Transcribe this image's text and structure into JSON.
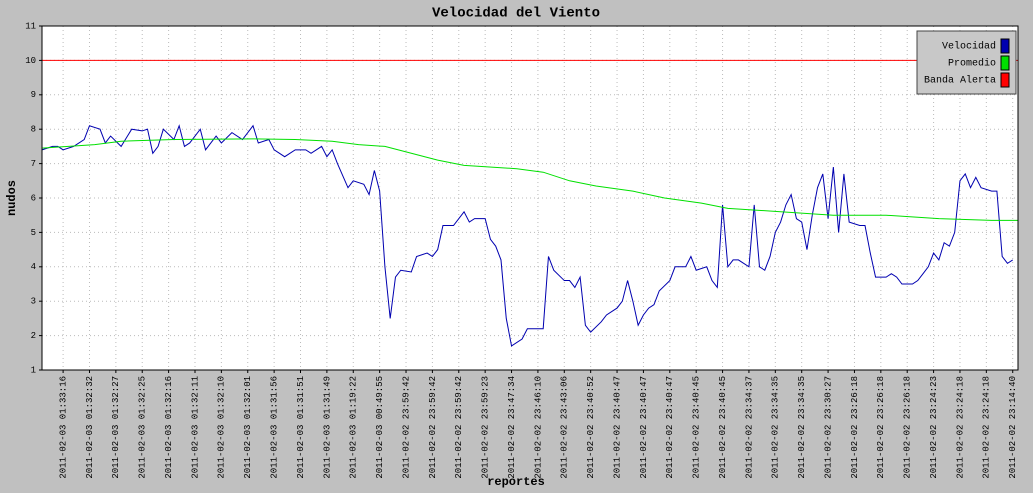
{
  "chart_data": {
    "type": "line",
    "title": "Velocidad del Viento",
    "xlabel": "reportes",
    "ylabel": "nudos",
    "xlim": [
      0,
      185
    ],
    "ylim": [
      1,
      11
    ],
    "yticks": [
      1,
      2,
      3,
      4,
      5,
      6,
      7,
      8,
      9,
      10,
      11
    ],
    "xticks": [
      {
        "value": 4,
        "label": "2011-02-03 01:33:16"
      },
      {
        "value": 9,
        "label": "2011-02-03 01:32:32"
      },
      {
        "value": 14,
        "label": "2011-02-03 01:32:27"
      },
      {
        "value": 19,
        "label": "2011-02-03 01:32:25"
      },
      {
        "value": 24,
        "label": "2011-02-03 01:32:16"
      },
      {
        "value": 29,
        "label": "2011-02-03 01:32:11"
      },
      {
        "value": 34,
        "label": "2011-02-03 01:32:10"
      },
      {
        "value": 39,
        "label": "2011-02-03 01:32:01"
      },
      {
        "value": 44,
        "label": "2011-02-03 01:31:56"
      },
      {
        "value": 49,
        "label": "2011-02-03 01:31:51"
      },
      {
        "value": 54,
        "label": "2011-02-03 01:31:49"
      },
      {
        "value": 59,
        "label": "2011-02-03 01:19:22"
      },
      {
        "value": 64,
        "label": "2011-02-03 00:49:55"
      },
      {
        "value": 69,
        "label": "2011-02-02 23:59:42"
      },
      {
        "value": 74,
        "label": "2011-02-02 23:59:42"
      },
      {
        "value": 79,
        "label": "2011-02-02 23:59:42"
      },
      {
        "value": 84,
        "label": "2011-02-02 23:59:23"
      },
      {
        "value": 89,
        "label": "2011-02-02 23:47:34"
      },
      {
        "value": 94,
        "label": "2011-02-02 23:46:10"
      },
      {
        "value": 99,
        "label": "2011-02-02 23:43:06"
      },
      {
        "value": 104,
        "label": "2011-02-02 23:40:52"
      },
      {
        "value": 109,
        "label": "2011-02-02 23:40:47"
      },
      {
        "value": 114,
        "label": "2011-02-02 23:40:47"
      },
      {
        "value": 119,
        "label": "2011-02-02 23:40:47"
      },
      {
        "value": 124,
        "label": "2011-02-02 23:40:45"
      },
      {
        "value": 129,
        "label": "2011-02-02 23:40:45"
      },
      {
        "value": 134,
        "label": "2011-02-02 23:34:37"
      },
      {
        "value": 139,
        "label": "2011-02-02 23:34:35"
      },
      {
        "value": 144,
        "label": "2011-02-02 23:34:35"
      },
      {
        "value": 149,
        "label": "2011-02-02 23:30:27"
      },
      {
        "value": 154,
        "label": "2011-02-02 23:26:18"
      },
      {
        "value": 159,
        "label": "2011-02-02 23:26:18"
      },
      {
        "value": 164,
        "label": "2011-02-02 23:26:18"
      },
      {
        "value": 169,
        "label": "2011-02-02 23:24:23"
      },
      {
        "value": 174,
        "label": "2011-02-02 23:24:18"
      },
      {
        "value": 179,
        "label": "2011-02-02 23:24:18"
      },
      {
        "value": 184,
        "label": "2011-02-02 23:14:40"
      }
    ],
    "grid": true,
    "legend": "top-right",
    "series": [
      {
        "name": "Velocidad",
        "color": "#0000b0",
        "x": [
          0,
          2,
          3,
          4,
          6,
          8,
          9,
          11,
          12,
          13,
          15,
          17,
          19,
          20,
          21,
          22,
          23,
          25,
          26,
          27,
          28,
          30,
          31,
          33,
          34,
          36,
          38,
          40,
          41,
          43,
          44,
          46,
          48,
          50,
          51,
          53,
          54,
          55,
          56,
          58,
          59,
          61,
          62,
          63,
          64,
          65,
          66,
          67,
          68,
          70,
          71,
          73,
          74,
          75,
          76,
          78,
          80,
          81,
          82,
          84,
          85,
          86,
          87,
          88,
          89,
          91,
          92,
          95,
          96,
          97,
          99,
          100,
          101,
          102,
          103,
          104,
          106,
          107,
          109,
          110,
          111,
          112,
          113,
          114,
          115,
          116,
          117,
          119,
          120,
          122,
          123,
          124,
          126,
          127,
          128,
          129,
          130,
          131,
          132,
          134,
          135,
          136,
          137,
          138,
          139,
          140,
          141,
          142,
          143,
          144,
          145,
          146,
          147,
          148,
          149,
          150,
          151,
          152,
          153,
          155,
          156,
          157,
          158,
          160,
          161,
          162,
          163,
          165,
          166,
          167,
          168,
          169,
          170,
          171,
          172,
          173,
          174,
          175,
          176,
          177,
          178,
          180,
          181,
          182,
          183,
          184
        ],
        "values": [
          7.4,
          7.5,
          7.5,
          7.4,
          7.5,
          7.7,
          8.1,
          8.0,
          7.6,
          7.8,
          7.5,
          8.0,
          7.95,
          8.0,
          7.3,
          7.5,
          8.0,
          7.7,
          8.1,
          7.5,
          7.6,
          8.0,
          7.4,
          7.8,
          7.6,
          7.9,
          7.7,
          8.1,
          7.6,
          7.7,
          7.4,
          7.2,
          7.4,
          7.4,
          7.3,
          7.5,
          7.2,
          7.4,
          7.0,
          6.3,
          6.5,
          6.4,
          6.1,
          6.8,
          6.2,
          4.0,
          2.5,
          3.7,
          3.9,
          3.85,
          4.3,
          4.4,
          4.3,
          4.5,
          5.2,
          5.2,
          5.6,
          5.3,
          5.4,
          5.4,
          4.8,
          4.6,
          4.2,
          2.5,
          1.7,
          1.9,
          2.2,
          2.2,
          4.3,
          3.9,
          3.6,
          3.6,
          3.4,
          3.7,
          2.3,
          2.1,
          2.4,
          2.6,
          2.8,
          3.0,
          3.6,
          3.0,
          2.3,
          2.6,
          2.8,
          2.9,
          3.3,
          3.6,
          4.0,
          4.0,
          4.3,
          3.9,
          4.0,
          3.6,
          3.4,
          5.8,
          4.0,
          4.2,
          4.2,
          4.0,
          5.8,
          4.0,
          3.9,
          4.3,
          5.0,
          5.3,
          5.8,
          6.1,
          5.4,
          5.3,
          4.5,
          5.5,
          6.3,
          6.7,
          5.4,
          6.9,
          5.0,
          6.7,
          5.3,
          5.2,
          5.2,
          4.4,
          3.7,
          3.7,
          3.8,
          3.7,
          3.5,
          3.5,
          3.6,
          3.8,
          4.0,
          4.4,
          4.2,
          4.7,
          4.6,
          5.0,
          6.5,
          6.7,
          6.3,
          6.6,
          6.3,
          6.2,
          6.2,
          4.3,
          4.1,
          4.2
        ]
      },
      {
        "name": "Promedio",
        "color": "#00e000",
        "x": [
          0,
          10,
          15,
          25,
          40,
          48,
          55,
          60,
          65,
          70,
          75,
          80,
          90,
          95,
          100,
          105,
          112,
          118,
          125,
          130,
          140,
          150,
          160,
          170,
          180,
          185
        ],
        "values": [
          7.45,
          7.55,
          7.65,
          7.7,
          7.72,
          7.7,
          7.65,
          7.55,
          7.5,
          7.3,
          7.1,
          6.95,
          6.85,
          6.75,
          6.5,
          6.35,
          6.2,
          6.0,
          5.85,
          5.7,
          5.6,
          5.5,
          5.5,
          5.4,
          5.35,
          5.35
        ]
      },
      {
        "name": "Banda Alerta",
        "color": "#ff0000",
        "x": [
          0,
          185
        ],
        "values": [
          10,
          10
        ]
      }
    ]
  }
}
